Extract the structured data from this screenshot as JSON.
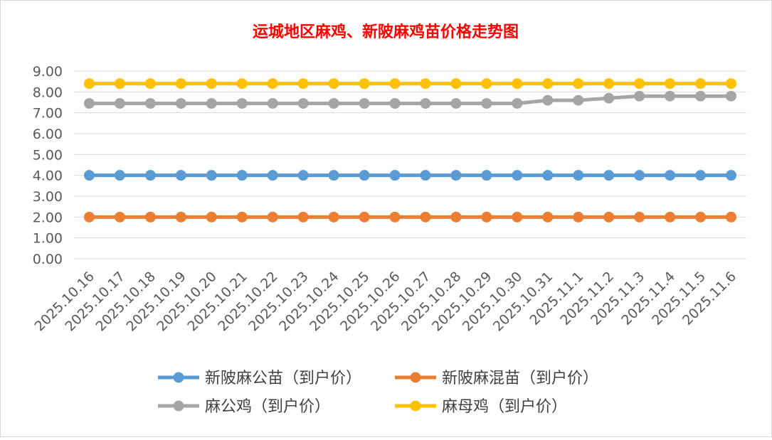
{
  "chart_data": {
    "type": "line",
    "title": "运城地区麻鸡、新陂麻鸡苗价格走势图",
    "xlabel": "",
    "ylabel": "",
    "ylim": [
      0,
      9
    ],
    "yticks": [
      "0.00",
      "1.00",
      "2.00",
      "3.00",
      "4.00",
      "5.00",
      "6.00",
      "7.00",
      "8.00",
      "9.00"
    ],
    "grid": true,
    "legend_position": "bottom",
    "categories": [
      "2025.10.16",
      "2025.10.17",
      "2025.10.18",
      "2025.10.19",
      "2025.10.20",
      "2025.10.21",
      "2025.10.22",
      "2025.10.23",
      "2025.10.24",
      "2025.10.25",
      "2025.10.26",
      "2025.10.27",
      "2025.10.28",
      "2025.10.29",
      "2025.10.30",
      "2025.10.31",
      "2025.11.1",
      "2025.11.2",
      "2025.11.3",
      "2025.11.4",
      "2025.11.5",
      "2025.11.6"
    ],
    "series": [
      {
        "name": "新陂麻公苗（到户价）",
        "color": "#5B9BD5",
        "values": [
          4,
          4,
          4,
          4,
          4,
          4,
          4,
          4,
          4,
          4,
          4,
          4,
          4,
          4,
          4,
          4,
          4,
          4,
          4,
          4,
          4,
          4
        ]
      },
      {
        "name": "新陂麻混苗（到户价）",
        "color": "#ED7D31",
        "values": [
          2,
          2,
          2,
          2,
          2,
          2,
          2,
          2,
          2,
          2,
          2,
          2,
          2,
          2,
          2,
          2,
          2,
          2,
          2,
          2,
          2,
          2
        ]
      },
      {
        "name": "麻公鸡（到户价）",
        "color": "#A5A5A5",
        "values": [
          7.45,
          7.45,
          7.45,
          7.45,
          7.45,
          7.45,
          7.45,
          7.45,
          7.45,
          7.45,
          7.45,
          7.45,
          7.45,
          7.45,
          7.45,
          7.6,
          7.6,
          7.7,
          7.8,
          7.8,
          7.8,
          7.8
        ]
      },
      {
        "name": "麻母鸡（到户价）",
        "color": "#FFC000",
        "values": [
          8.4,
          8.4,
          8.4,
          8.4,
          8.4,
          8.4,
          8.4,
          8.4,
          8.4,
          8.4,
          8.4,
          8.4,
          8.4,
          8.4,
          8.4,
          8.4,
          8.4,
          8.4,
          8.4,
          8.4,
          8.4,
          8.4
        ]
      }
    ]
  }
}
